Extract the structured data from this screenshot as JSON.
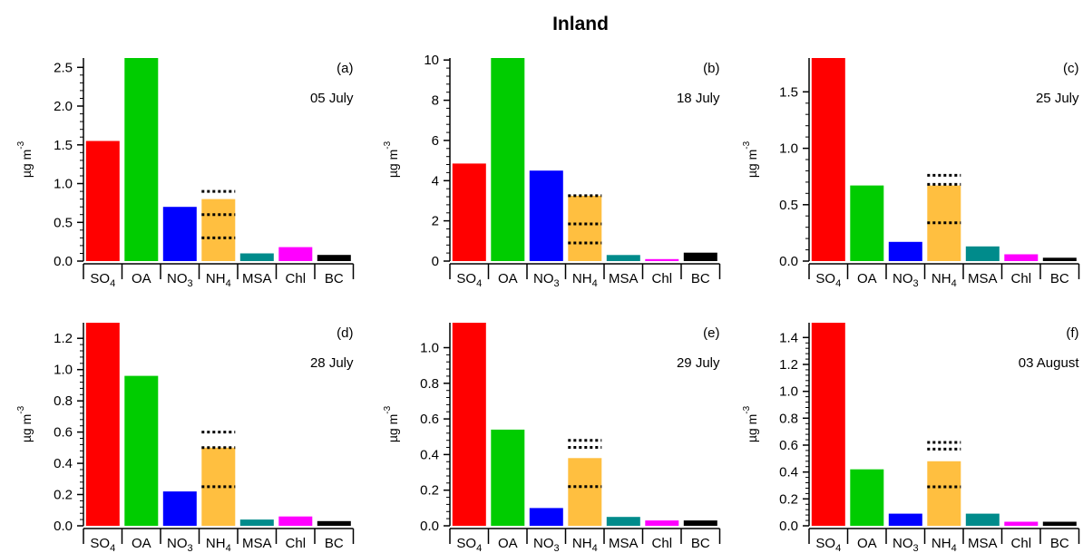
{
  "figure": {
    "title": "Inland"
  },
  "colors": {
    "SO4": "#ff0000",
    "OA": "#00cc00",
    "NO3": "#0000ff",
    "NH4": "#ffbf40",
    "MSA": "#008b8b",
    "Chl": "#ff00ff",
    "BC": "#000000"
  },
  "chart_data": [
    {
      "type": "bar",
      "panel_label": "(a)",
      "date": "05 July",
      "ylabel_base": "µg m",
      "ylabel_sup": "-3",
      "categories": [
        {
          "base": "SO",
          "sub": "4"
        },
        {
          "base": "OA",
          "sub": ""
        },
        {
          "base": "NO",
          "sub": "3"
        },
        {
          "base": "NH",
          "sub": "4"
        },
        {
          "base": "MSA",
          "sub": ""
        },
        {
          "base": "Chl",
          "sub": ""
        },
        {
          "base": "BC",
          "sub": ""
        }
      ],
      "values": [
        1.55,
        2.62,
        0.7,
        0.8,
        0.1,
        0.18,
        0.08
      ],
      "nh4_dotted_levels": [
        0.3,
        0.6,
        0.9
      ],
      "ylim": [
        0,
        2.62
      ],
      "yticks": [
        0.0,
        0.5,
        1.0,
        1.5,
        2.0,
        2.5
      ],
      "ytick_labels": [
        "0.0",
        "0.5",
        "1.0",
        "1.5",
        "2.0",
        "2.5"
      ]
    },
    {
      "type": "bar",
      "panel_label": "(b)",
      "date": "18 July",
      "ylabel_base": "µg m",
      "ylabel_sup": "-3",
      "categories": [
        {
          "base": "SO",
          "sub": "4"
        },
        {
          "base": "OA",
          "sub": ""
        },
        {
          "base": "NO",
          "sub": "3"
        },
        {
          "base": "NH",
          "sub": "4"
        },
        {
          "base": "MSA",
          "sub": ""
        },
        {
          "base": "Chl",
          "sub": ""
        },
        {
          "base": "BC",
          "sub": ""
        }
      ],
      "values": [
        4.85,
        10.1,
        4.5,
        3.25,
        0.3,
        0.1,
        0.42
      ],
      "nh4_dotted_levels": [
        0.9,
        1.85,
        3.25
      ],
      "ylim": [
        0,
        10.1
      ],
      "yticks": [
        0,
        2,
        4,
        6,
        8,
        10
      ],
      "ytick_labels": [
        "0",
        "2",
        "4",
        "6",
        "8",
        "10"
      ]
    },
    {
      "type": "bar",
      "panel_label": "(c)",
      "date": "25 July",
      "ylabel_base": "µg m",
      "ylabel_sup": "-3",
      "categories": [
        {
          "base": "SO",
          "sub": "4"
        },
        {
          "base": "OA",
          "sub": ""
        },
        {
          "base": "NO",
          "sub": "3"
        },
        {
          "base": "NH",
          "sub": "4"
        },
        {
          "base": "MSA",
          "sub": ""
        },
        {
          "base": "Chl",
          "sub": ""
        },
        {
          "base": "BC",
          "sub": ""
        }
      ],
      "values": [
        1.8,
        0.67,
        0.17,
        0.67,
        0.13,
        0.06,
        0.03
      ],
      "nh4_dotted_levels": [
        0.34,
        0.68,
        0.76
      ],
      "ylim": [
        0,
        1.8
      ],
      "yticks": [
        0.0,
        0.5,
        1.0,
        1.5
      ],
      "ytick_labels": [
        "0.0",
        "0.5",
        "1.0",
        "1.5"
      ]
    },
    {
      "type": "bar",
      "panel_label": "(d)",
      "date": "28 July",
      "ylabel_base": "µg m",
      "ylabel_sup": "-3",
      "categories": [
        {
          "base": "SO",
          "sub": "4"
        },
        {
          "base": "OA",
          "sub": ""
        },
        {
          "base": "NO",
          "sub": "3"
        },
        {
          "base": "NH",
          "sub": "4"
        },
        {
          "base": "MSA",
          "sub": ""
        },
        {
          "base": "Chl",
          "sub": ""
        },
        {
          "base": "BC",
          "sub": ""
        }
      ],
      "values": [
        1.3,
        0.96,
        0.22,
        0.5,
        0.04,
        0.06,
        0.03
      ],
      "nh4_dotted_levels": [
        0.25,
        0.5,
        0.6
      ],
      "ylim": [
        0,
        1.3
      ],
      "yticks": [
        0.0,
        0.2,
        0.4,
        0.6,
        0.8,
        1.0,
        1.2
      ],
      "ytick_labels": [
        "0.0",
        "0.2",
        "0.4",
        "0.6",
        "0.8",
        "1.0",
        "1.2"
      ]
    },
    {
      "type": "bar",
      "panel_label": "(e)",
      "date": "29 July",
      "ylabel_base": "µg m",
      "ylabel_sup": "-3",
      "categories": [
        {
          "base": "SO",
          "sub": "4"
        },
        {
          "base": "OA",
          "sub": ""
        },
        {
          "base": "NO",
          "sub": "3"
        },
        {
          "base": "NH",
          "sub": "4"
        },
        {
          "base": "MSA",
          "sub": ""
        },
        {
          "base": "Chl",
          "sub": ""
        },
        {
          "base": "BC",
          "sub": ""
        }
      ],
      "values": [
        1.14,
        0.54,
        0.1,
        0.38,
        0.05,
        0.03,
        0.03
      ],
      "nh4_dotted_levels": [
        0.22,
        0.44,
        0.48
      ],
      "ylim": [
        0,
        1.14
      ],
      "yticks": [
        0.0,
        0.2,
        0.4,
        0.6,
        0.8,
        1.0
      ],
      "ytick_labels": [
        "0.0",
        "0.2",
        "0.4",
        "0.6",
        "0.8",
        "1.0"
      ]
    },
    {
      "type": "bar",
      "panel_label": "(f)",
      "date": "03 August",
      "ylabel_base": "µg m",
      "ylabel_sup": "-3",
      "categories": [
        {
          "base": "SO",
          "sub": "4"
        },
        {
          "base": "OA",
          "sub": ""
        },
        {
          "base": "NO",
          "sub": "3"
        },
        {
          "base": "NH",
          "sub": "4"
        },
        {
          "base": "MSA",
          "sub": ""
        },
        {
          "base": "Chl",
          "sub": ""
        },
        {
          "base": "BC",
          "sub": ""
        }
      ],
      "values": [
        1.51,
        0.42,
        0.09,
        0.48,
        0.09,
        0.03,
        0.03
      ],
      "nh4_dotted_levels": [
        0.29,
        0.57,
        0.62
      ],
      "ylim": [
        0,
        1.51
      ],
      "yticks": [
        0.0,
        0.2,
        0.4,
        0.6,
        0.8,
        1.0,
        1.2,
        1.4
      ],
      "ytick_labels": [
        "0.0",
        "0.2",
        "0.4",
        "0.6",
        "0.8",
        "1.0",
        "1.2",
        "1.4"
      ]
    }
  ]
}
